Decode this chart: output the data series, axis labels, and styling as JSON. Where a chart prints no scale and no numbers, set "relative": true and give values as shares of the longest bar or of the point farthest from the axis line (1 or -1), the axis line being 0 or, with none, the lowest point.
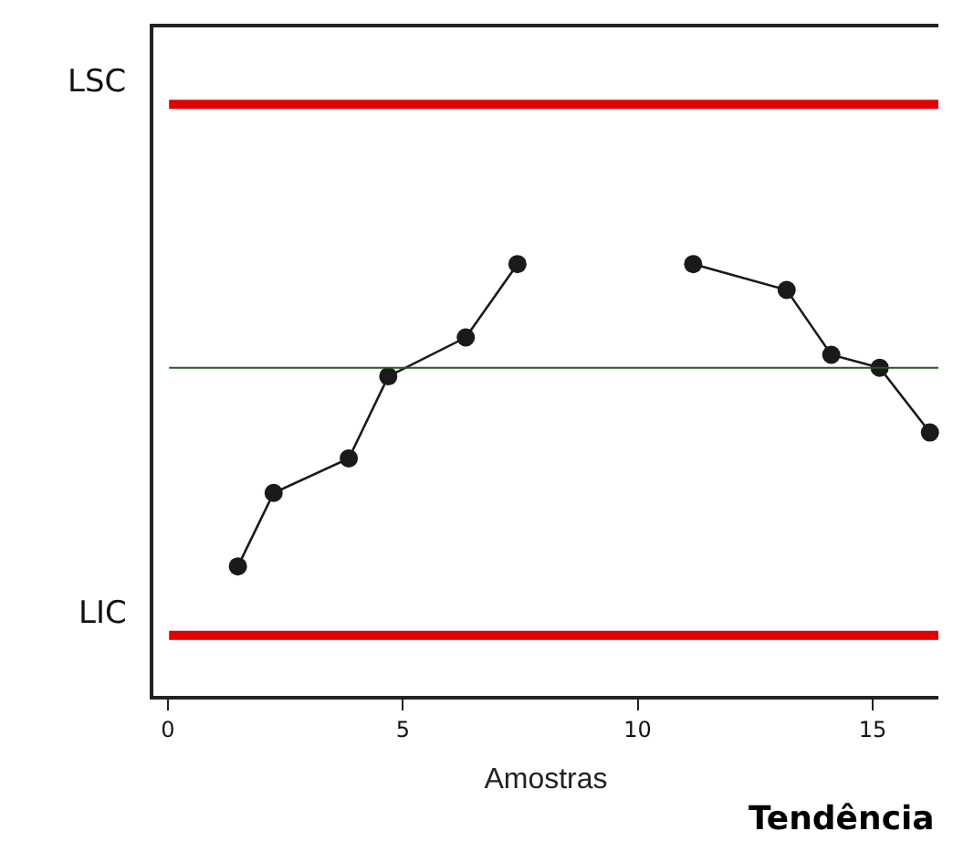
{
  "chart_data": {
    "type": "line",
    "xlabel": "Amostras",
    "relative": true,
    "series": [
      {
        "color": "#1a1a1a",
        "x": [
          1.49,
          2.25,
          3.85,
          4.69,
          6.34,
          7.44,
          9.3,
          11.18,
          13.17,
          14.12,
          15.15,
          16.22
        ],
        "values": [
          0.3,
          0.47,
          0.55,
          0.74,
          0.83,
          1,
          null,
          1,
          0.94,
          0.79,
          0.76,
          0.61
        ]
      }
    ],
    "marker": "circle",
    "line_style": "solid",
    "xlim": [
      -0.31,
      16.4
    ],
    "xticks": [
      0,
      5,
      10,
      15
    ],
    "ref_lines": [
      {
        "axis": "y",
        "value": 1.37,
        "label": "LSC",
        "color": "#e00000"
      },
      {
        "axis": "y",
        "value": 0.14,
        "label": "LIC",
        "color": "#e00000"
      },
      {
        "axis": "y",
        "value": 0.76,
        "color": "#1e5a1e"
      }
    ],
    "annotations": [
      "Tendência"
    ],
    "legend": false
  }
}
